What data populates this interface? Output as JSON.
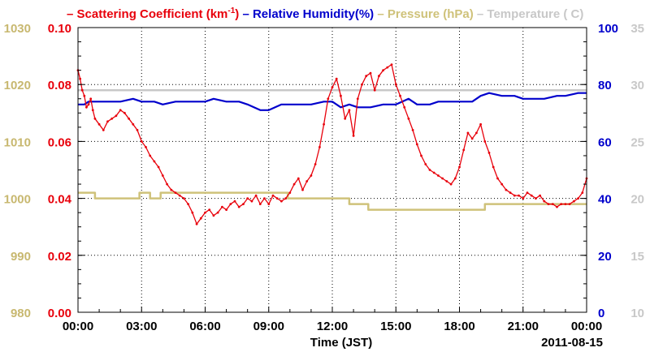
{
  "chart_data": {
    "type": "line",
    "title_html": "",
    "legend": [
      {
        "key": "scattering",
        "prefix": "–",
        "text": "Scattering Coefficient (km",
        "sup": "-1",
        "suffix": ")",
        "color": "#e8000b"
      },
      {
        "key": "humidity",
        "prefix": "–",
        "text": "Relative Humidity(%)",
        "sup": "",
        "suffix": "",
        "color": "#0000cc"
      },
      {
        "key": "pressure",
        "prefix": "–",
        "text": "Pressure (hPa)",
        "sup": "",
        "suffix": "",
        "color": "#cfc27a"
      },
      {
        "key": "temperature",
        "prefix": "–",
        "text": "Temperature (",
        "sup": "",
        "suffix": "C)",
        "color": "#c8c8c8"
      }
    ],
    "xlabel": "Time (JST)",
    "date_label": "2011-08-15",
    "x_ticks": [
      "00:00",
      "03:00",
      "06:00",
      "09:00",
      "12:00",
      "15:00",
      "18:00",
      "21:00",
      "00:00"
    ],
    "xlim_hours": [
      0,
      24
    ],
    "axes": {
      "pressure": {
        "ticks": [
          "980",
          "990",
          "1000",
          "1010",
          "1020",
          "1030"
        ],
        "ylim": [
          980,
          1030
        ],
        "color": "#c8b870"
      },
      "scattering": {
        "ticks": [
          "0.00",
          "0.02",
          "0.04",
          "0.06",
          "0.08",
          "0.10"
        ],
        "ylim": [
          0,
          0.1
        ],
        "color": "#e8000b"
      },
      "humidity": {
        "ticks": [
          "0",
          "20",
          "40",
          "60",
          "80",
          "100"
        ],
        "ylim": [
          0,
          100
        ],
        "color": "#0000cc"
      },
      "temperature": {
        "ticks": [
          "10",
          "15",
          "20",
          "25",
          "30",
          "35"
        ],
        "ylim": [
          10,
          35
        ],
        "color": "#c8c8c8"
      }
    },
    "grid": true,
    "series": [
      {
        "key": "scattering",
        "color": "#e8000b",
        "markers": true,
        "points": [
          [
            0.0,
            0.085
          ],
          [
            0.1,
            0.082
          ],
          [
            0.2,
            0.078
          ],
          [
            0.3,
            0.076
          ],
          [
            0.4,
            0.072
          ],
          [
            0.5,
            0.073
          ],
          [
            0.6,
            0.075
          ],
          [
            0.7,
            0.071
          ],
          [
            0.8,
            0.068
          ],
          [
            1.0,
            0.066
          ],
          [
            1.2,
            0.064
          ],
          [
            1.4,
            0.067
          ],
          [
            1.6,
            0.068
          ],
          [
            1.8,
            0.069
          ],
          [
            2.0,
            0.071
          ],
          [
            2.2,
            0.07
          ],
          [
            2.4,
            0.068
          ],
          [
            2.6,
            0.066
          ],
          [
            2.8,
            0.064
          ],
          [
            3.0,
            0.06
          ],
          [
            3.2,
            0.058
          ],
          [
            3.4,
            0.055
          ],
          [
            3.6,
            0.053
          ],
          [
            3.8,
            0.051
          ],
          [
            4.0,
            0.048
          ],
          [
            4.2,
            0.045
          ],
          [
            4.4,
            0.043
          ],
          [
            4.6,
            0.042
          ],
          [
            4.8,
            0.041
          ],
          [
            5.0,
            0.04
          ],
          [
            5.2,
            0.038
          ],
          [
            5.4,
            0.035
          ],
          [
            5.6,
            0.031
          ],
          [
            5.8,
            0.033
          ],
          [
            6.0,
            0.035
          ],
          [
            6.2,
            0.036
          ],
          [
            6.4,
            0.034
          ],
          [
            6.6,
            0.035
          ],
          [
            6.8,
            0.037
          ],
          [
            7.0,
            0.036
          ],
          [
            7.2,
            0.038
          ],
          [
            7.4,
            0.039
          ],
          [
            7.6,
            0.037
          ],
          [
            7.8,
            0.038
          ],
          [
            8.0,
            0.04
          ],
          [
            8.2,
            0.039
          ],
          [
            8.4,
            0.041
          ],
          [
            8.6,
            0.038
          ],
          [
            8.8,
            0.04
          ],
          [
            9.0,
            0.038
          ],
          [
            9.2,
            0.041
          ],
          [
            9.4,
            0.04
          ],
          [
            9.6,
            0.039
          ],
          [
            9.8,
            0.04
          ],
          [
            10.0,
            0.042
          ],
          [
            10.2,
            0.045
          ],
          [
            10.4,
            0.047
          ],
          [
            10.6,
            0.043
          ],
          [
            10.8,
            0.046
          ],
          [
            11.0,
            0.048
          ],
          [
            11.2,
            0.052
          ],
          [
            11.4,
            0.058
          ],
          [
            11.6,
            0.066
          ],
          [
            11.8,
            0.075
          ],
          [
            12.0,
            0.079
          ],
          [
            12.2,
            0.082
          ],
          [
            12.4,
            0.076
          ],
          [
            12.6,
            0.068
          ],
          [
            12.8,
            0.071
          ],
          [
            13.0,
            0.062
          ],
          [
            13.2,
            0.075
          ],
          [
            13.4,
            0.08
          ],
          [
            13.6,
            0.083
          ],
          [
            13.8,
            0.084
          ],
          [
            14.0,
            0.078
          ],
          [
            14.2,
            0.083
          ],
          [
            14.4,
            0.085
          ],
          [
            14.6,
            0.086
          ],
          [
            14.8,
            0.087
          ],
          [
            15.0,
            0.08
          ],
          [
            15.2,
            0.076
          ],
          [
            15.4,
            0.072
          ],
          [
            15.6,
            0.068
          ],
          [
            15.8,
            0.064
          ],
          [
            16.0,
            0.059
          ],
          [
            16.2,
            0.055
          ],
          [
            16.4,
            0.052
          ],
          [
            16.6,
            0.05
          ],
          [
            16.8,
            0.049
          ],
          [
            17.0,
            0.048
          ],
          [
            17.2,
            0.047
          ],
          [
            17.4,
            0.046
          ],
          [
            17.6,
            0.045
          ],
          [
            17.8,
            0.047
          ],
          [
            18.0,
            0.051
          ],
          [
            18.2,
            0.057
          ],
          [
            18.4,
            0.063
          ],
          [
            18.6,
            0.061
          ],
          [
            18.8,
            0.063
          ],
          [
            19.0,
            0.066
          ],
          [
            19.2,
            0.06
          ],
          [
            19.4,
            0.056
          ],
          [
            19.6,
            0.051
          ],
          [
            19.8,
            0.047
          ],
          [
            20.0,
            0.045
          ],
          [
            20.2,
            0.043
          ],
          [
            20.4,
            0.042
          ],
          [
            20.6,
            0.041
          ],
          [
            20.8,
            0.041
          ],
          [
            21.0,
            0.04
          ],
          [
            21.2,
            0.042
          ],
          [
            21.4,
            0.041
          ],
          [
            21.6,
            0.04
          ],
          [
            21.8,
            0.041
          ],
          [
            22.0,
            0.039
          ],
          [
            22.2,
            0.038
          ],
          [
            22.4,
            0.038
          ],
          [
            22.6,
            0.037
          ],
          [
            22.8,
            0.038
          ],
          [
            23.0,
            0.038
          ],
          [
            23.2,
            0.038
          ],
          [
            23.4,
            0.039
          ],
          [
            23.6,
            0.04
          ],
          [
            23.8,
            0.042
          ],
          [
            24.0,
            0.047
          ]
        ]
      },
      {
        "key": "humidity",
        "color": "#0000cc",
        "markers": false,
        "points": [
          [
            0.0,
            73
          ],
          [
            0.3,
            73
          ],
          [
            0.5,
            74
          ],
          [
            1.0,
            74
          ],
          [
            2.0,
            74
          ],
          [
            2.6,
            75
          ],
          [
            3.0,
            74
          ],
          [
            3.6,
            74
          ],
          [
            4.0,
            73
          ],
          [
            4.6,
            74
          ],
          [
            5.0,
            74
          ],
          [
            6.0,
            74
          ],
          [
            6.4,
            75
          ],
          [
            7.0,
            74
          ],
          [
            7.6,
            74
          ],
          [
            8.0,
            73
          ],
          [
            8.6,
            71
          ],
          [
            9.0,
            71
          ],
          [
            9.6,
            73
          ],
          [
            10.0,
            73
          ],
          [
            11.0,
            73
          ],
          [
            11.6,
            74
          ],
          [
            12.0,
            74
          ],
          [
            12.4,
            72
          ],
          [
            12.8,
            73
          ],
          [
            13.2,
            72
          ],
          [
            13.8,
            72
          ],
          [
            14.4,
            73
          ],
          [
            15.0,
            73
          ],
          [
            15.6,
            75
          ],
          [
            16.0,
            73
          ],
          [
            16.6,
            73
          ],
          [
            17.0,
            74
          ],
          [
            17.6,
            74
          ],
          [
            18.0,
            74
          ],
          [
            18.6,
            74
          ],
          [
            19.0,
            76
          ],
          [
            19.4,
            77
          ],
          [
            20.0,
            76
          ],
          [
            20.6,
            76
          ],
          [
            21.0,
            75
          ],
          [
            22.0,
            75
          ],
          [
            22.6,
            76
          ],
          [
            23.0,
            76
          ],
          [
            23.6,
            77
          ],
          [
            24.0,
            77
          ]
        ]
      },
      {
        "key": "pressure",
        "color": "#cfc27a",
        "markers": false,
        "points": [
          [
            0.0,
            1001
          ],
          [
            0.8,
            1001
          ],
          [
            0.8,
            1000
          ],
          [
            2.9,
            1000
          ],
          [
            2.9,
            1001
          ],
          [
            3.4,
            1001
          ],
          [
            3.4,
            1000
          ],
          [
            3.9,
            1000
          ],
          [
            3.9,
            1001
          ],
          [
            9.9,
            1001
          ],
          [
            9.9,
            1000
          ],
          [
            12.8,
            1000
          ],
          [
            12.8,
            999
          ],
          [
            13.7,
            999
          ],
          [
            13.7,
            998
          ],
          [
            19.2,
            998
          ],
          [
            19.2,
            999
          ],
          [
            24.0,
            999
          ]
        ]
      },
      {
        "key": "temperature",
        "color": "#c8c8c8",
        "markers": false,
        "points": [
          [
            0.0,
            29.5
          ],
          [
            24.0,
            29.5
          ]
        ]
      }
    ]
  }
}
